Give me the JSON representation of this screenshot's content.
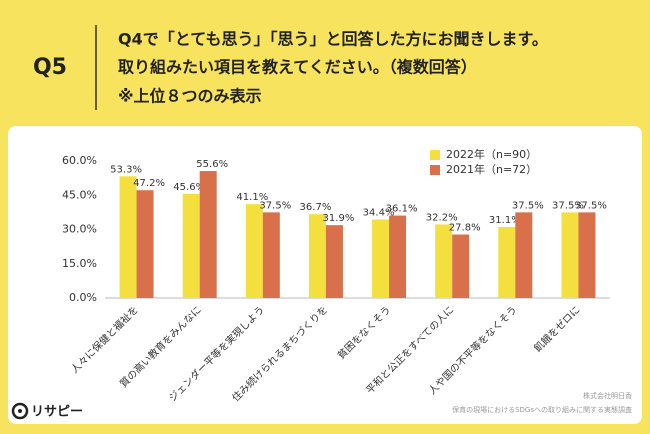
{
  "header": {
    "label": "Q5",
    "lines": [
      "Q4で「とても思う」「思う」と回答した方にお聞きします。",
      "取り組みたい項目を教えてください。（複数回答）",
      "※上位８つのみ表示"
    ]
  },
  "chart_data": {
    "type": "bar",
    "categories": [
      "人々に保健と福祉を",
      "質の高い教育をみんなに",
      "ジェンダー平等を実現しよう",
      "住み続けられるまちづくりを",
      "貧困をなくそう",
      "平和と公正をすべての人に",
      "人や国の不平等をなくそう",
      "飢餓をゼロに"
    ],
    "series": [
      {
        "name": "2022年（n=90）",
        "color": "#f3e03f",
        "values": [
          53.3,
          45.6,
          41.1,
          36.7,
          34.4,
          32.2,
          31.1,
          37.5
        ],
        "value_labels": [
          "53.3%",
          "45.6%",
          "41.1%",
          "36.7%",
          "34.4%",
          "32.2%",
          "31.1%",
          "37.5%"
        ]
      },
      {
        "name": "2021年（n=72）",
        "color": "#d8714b",
        "values": [
          47.2,
          55.6,
          37.5,
          31.9,
          36.1,
          27.8,
          37.5,
          37.5
        ],
        "value_labels": [
          "47.2%",
          "55.6%",
          "37.5%",
          "31.9%",
          "36.1%",
          "27.8%",
          "37.5%",
          "37.5%"
        ]
      }
    ],
    "ylim": [
      0,
      60
    ],
    "yticks": [
      {
        "value": 0,
        "label": "0.0%"
      },
      {
        "value": 15,
        "label": "15.0%"
      },
      {
        "value": 30,
        "label": "30.0%"
      },
      {
        "value": 45,
        "label": "45.0%"
      },
      {
        "value": 60,
        "label": "60.0%"
      }
    ],
    "grid": false,
    "legend": "top-right"
  },
  "footer": {
    "logo": "リサピー",
    "company": "株式会社明日香",
    "source": "保育の現場におけるSDGsへの取り組みに関する実態調査"
  }
}
